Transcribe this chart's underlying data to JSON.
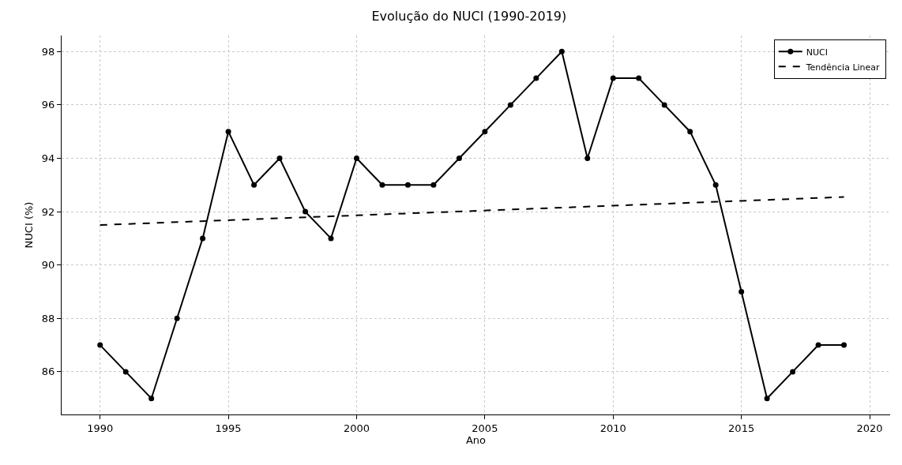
{
  "chart_data": {
    "type": "line",
    "title": "Evolução do NUCI (1990-2019)",
    "xlabel": "Ano",
    "ylabel": "NUCI (%)",
    "x": [
      1990,
      1991,
      1992,
      1993,
      1994,
      1995,
      1996,
      1997,
      1998,
      1999,
      2000,
      2001,
      2002,
      2003,
      2004,
      2005,
      2006,
      2007,
      2008,
      2009,
      2010,
      2011,
      2012,
      2013,
      2014,
      2015,
      2016,
      2017,
      2018,
      2019
    ],
    "series": [
      {
        "name": "NUCI",
        "color": "#000000",
        "marker": "circle",
        "line_style": "solid",
        "values": [
          87,
          86,
          85,
          88,
          91,
          95,
          93,
          94,
          92,
          91,
          94,
          93,
          93,
          93,
          94,
          95,
          96,
          97,
          98,
          94,
          97,
          97,
          96,
          95,
          93,
          89,
          85,
          86,
          87,
          87
        ]
      },
      {
        "name": "Tendência Linear",
        "type": "line",
        "color": "#000000",
        "marker": "none",
        "line_style": "dashed",
        "x": [
          1990,
          2019
        ],
        "values": [
          91.5,
          92.55
        ]
      }
    ],
    "xlim": [
      1988.5,
      2020.8
    ],
    "xticks": [
      1990,
      1995,
      2000,
      2005,
      2010,
      2015,
      2020
    ],
    "ylim": [
      84.4,
      98.6
    ],
    "yticks": [
      86,
      88,
      90,
      92,
      94,
      96,
      98
    ],
    "grid": true,
    "legend": "top right"
  }
}
